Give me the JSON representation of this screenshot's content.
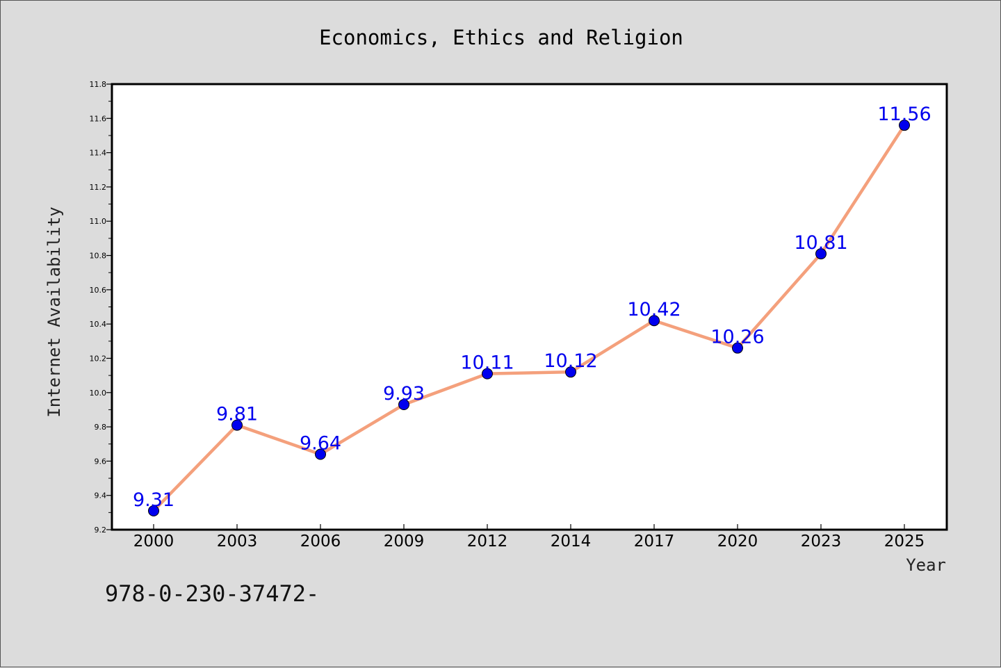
{
  "chart_data": {
    "type": "line",
    "title": "Economics, Ethics and Religion",
    "xlabel": "Year",
    "ylabel": "Internet Availability",
    "categories": [
      "2000",
      "2003",
      "2006",
      "2009",
      "2012",
      "2014",
      "2017",
      "2020",
      "2023",
      "2025"
    ],
    "series": [
      {
        "values": [
          9.31,
          9.81,
          9.64,
          9.93,
          10.11,
          10.12,
          10.42,
          10.26,
          10.81,
          11.56
        ]
      }
    ],
    "data_labels": [
      "9.31",
      "9.81",
      "9.64",
      "9.93",
      "10.11",
      "10.12",
      "10.42",
      "10.26",
      "10.81",
      "11.56"
    ],
    "ylim": [
      9.2,
      11.8
    ],
    "yticks": [
      "9.2",
      "9.4",
      "9.6",
      "9.8",
      "10.0",
      "10.2",
      "10.4",
      "10.6",
      "10.8",
      "11.0",
      "11.2",
      "11.4",
      "11.6",
      "11.8"
    ],
    "grid": false,
    "legend": "none",
    "colors": {
      "line": "#f4a07c",
      "marker": "#0000ee",
      "label": "#0000ee",
      "background": "#dcdcdc",
      "plot_area": "#ffffff"
    }
  },
  "footer_text": "978-0-230-37472-"
}
